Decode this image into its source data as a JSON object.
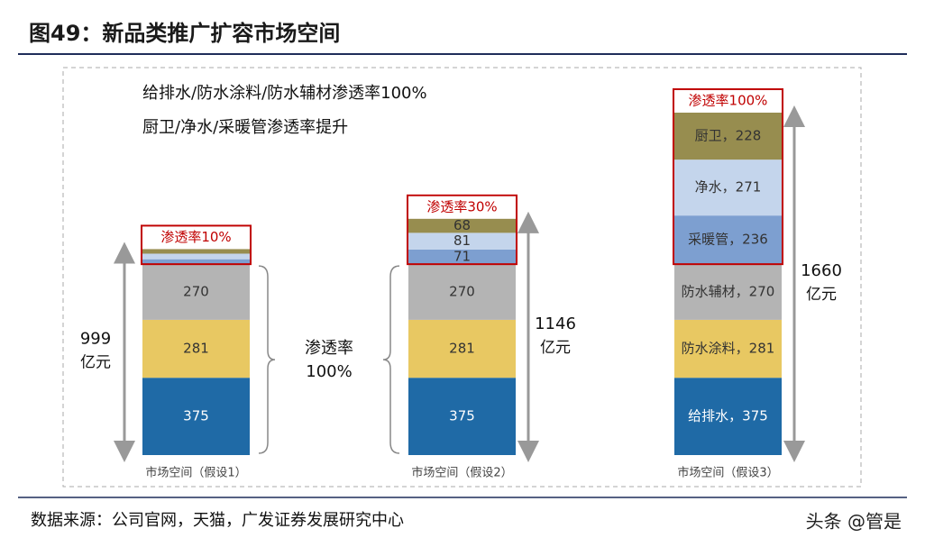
{
  "chart_data": {
    "type": "stacked-bar",
    "title": "图49：新品类推广扩容市场空间",
    "notes": [
      "给排水/防水涂料/防水辅材渗透率100%",
      "厨卫/净水/采暖管渗透率提升"
    ],
    "categories": [
      "市场空间（假设1）",
      "市场空间（假设2）",
      "市场空间（假设3）"
    ],
    "series": [
      {
        "color": "#1f6aa6",
        "values": [
          375,
          375,
          375
        ],
        "value_labels": [
          "375",
          "375",
          "给排水，375"
        ]
      },
      {
        "color": "#e8c862",
        "values": [
          281,
          281,
          281
        ],
        "value_labels": [
          "281",
          "281",
          "防水涂料，281"
        ]
      },
      {
        "color": "#b4b4b4",
        "values": [
          270,
          270,
          270
        ],
        "value_labels": [
          "270",
          "270",
          "防水辅材，270"
        ]
      },
      {
        "color": "#7d9fd0",
        "values": [
          24,
          71,
          236
        ],
        "value_labels": [
          null,
          "71",
          "采暖管，236"
        ]
      },
      {
        "color": "#c4d5ec",
        "values": [
          27,
          81,
          271
        ],
        "value_labels": [
          null,
          "81",
          "净水，271"
        ]
      },
      {
        "color": "#978d4f",
        "values": [
          22,
          68,
          228
        ],
        "value_labels": [
          null,
          "68",
          "厨卫，228"
        ]
      }
    ],
    "penetration_labels": [
      "渗透率10%",
      "渗透率30%",
      "渗透率100%"
    ],
    "totals": [
      999,
      1146,
      1660
    ],
    "total_unit": "亿元",
    "brace_label": [
      "渗透率",
      "100%"
    ],
    "source": "数据来源：公司官网，天猫，广发证券发展研究中心",
    "watermark": "头条 @管是"
  }
}
